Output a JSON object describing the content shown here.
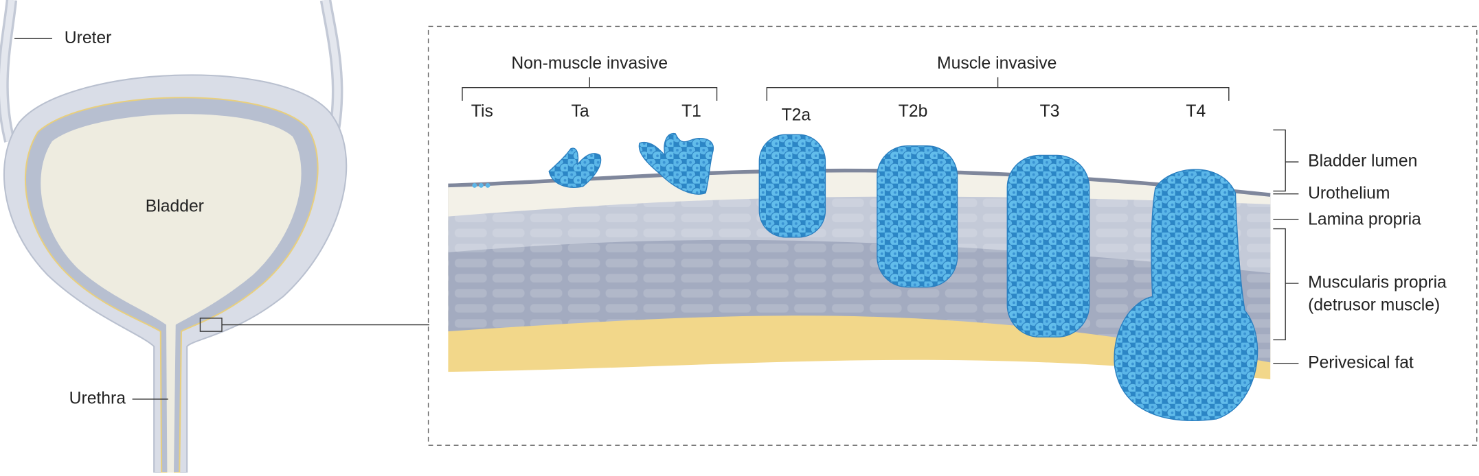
{
  "anatomy": {
    "ureter": "Ureter",
    "bladder": "Bladder",
    "urethra": "Urethra"
  },
  "groups": [
    "Non-muscle invasive",
    "Muscle invasive"
  ],
  "stages": [
    "Tis",
    "Ta",
    "T1",
    "T2a",
    "T2b",
    "T3",
    "T4"
  ],
  "layers": {
    "lumen": "Bladder lumen",
    "urothelium": "Urothelium",
    "lamina": "Lamina propria",
    "muscularis": [
      "Muscularis propria",
      "(detrusor muscle)"
    ],
    "fat": "Perivesical fat"
  }
}
